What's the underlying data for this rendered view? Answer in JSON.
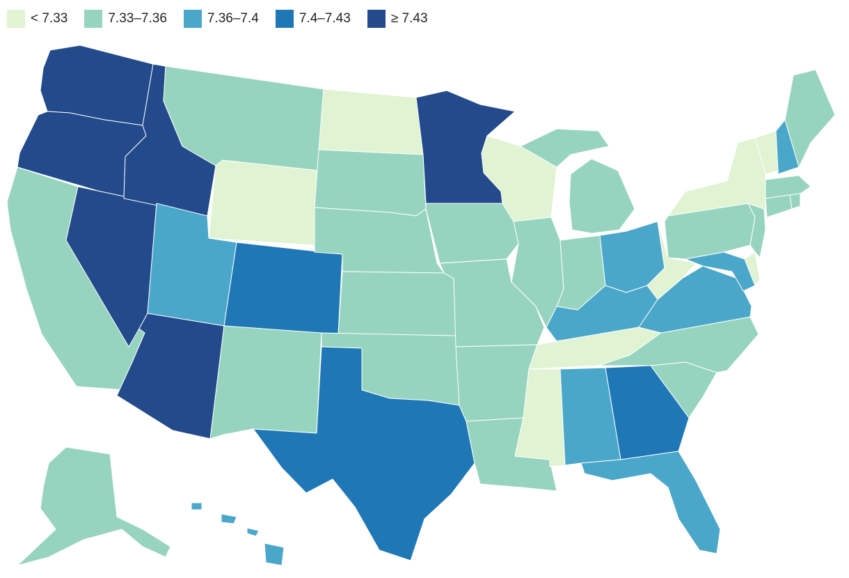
{
  "legend": {
    "items": [
      {
        "label": "< 7.33",
        "color": "#e0f3d2"
      },
      {
        "label": "7.33–7.36",
        "color": "#97d4c0"
      },
      {
        "label": "7.36–7.4",
        "color": "#4ba7ca"
      },
      {
        "label": "7.4–7.43",
        "color": "#1f78b5"
      },
      {
        "label": "≥ 7.43",
        "color": "#234a8a"
      }
    ]
  },
  "states": {
    "WA": 4,
    "OR": 4,
    "ID": 4,
    "NV": 4,
    "AZ": 4,
    "MN": 4,
    "CO": 3,
    "TX": 3,
    "GA": 3,
    "UT": 2,
    "OH": 2,
    "KY": 2,
    "VA": 2,
    "MD": 2,
    "NH": 2,
    "AL": 2,
    "FL": 2,
    "HI": 2,
    "WY": 0,
    "ND": 0,
    "WI": 0,
    "NY": 0,
    "VT": 0,
    "DE": 0,
    "TN": 0,
    "MS": 0,
    "WV": 0,
    "MT": 1,
    "CA": 1,
    "SD": 1,
    "NE": 1,
    "KS": 1,
    "NM": 1,
    "OK": 1,
    "IA": 1,
    "MO": 1,
    "AR": 1,
    "LA": 1,
    "IL": 1,
    "IN": 1,
    "MI": 1,
    "PA": 1,
    "NJ": 1,
    "NC": 1,
    "SC": 1,
    "ME": 1,
    "MA": 1,
    "CT": 1,
    "RI": 1,
    "AK": 1
  }
}
